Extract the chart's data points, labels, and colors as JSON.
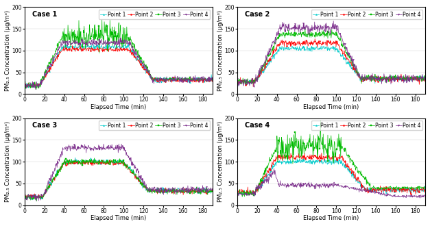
{
  "cases": [
    "Case 1",
    "Case 2",
    "Case 3",
    "Case 4"
  ],
  "legend_labels": [
    "Point 1",
    "Point 2",
    "Point 3",
    "Point 4"
  ],
  "line_colors": [
    "#00CCCC",
    "#FF0000",
    "#00BB00",
    "#7B2D8B"
  ],
  "marker_styles": [
    "^",
    "o",
    "s",
    "v"
  ],
  "xlabel": "Elapsed Time (min)",
  "ylabel": "PM₂.₅ Concentration (μg/m³)",
  "xlim": [
    0,
    190
  ],
  "ylim": [
    0,
    200
  ],
  "xticks": [
    0,
    20,
    40,
    60,
    80,
    100,
    120,
    140,
    160,
    180
  ],
  "yticks": [
    0,
    50,
    100,
    150,
    200
  ],
  "case_fontsize": 7,
  "label_fontsize": 6,
  "tick_fontsize": 5.5,
  "legend_fontsize": 5.5,
  "line_width": 0.5,
  "marker_size": 1.5,
  "marker_every": 25
}
